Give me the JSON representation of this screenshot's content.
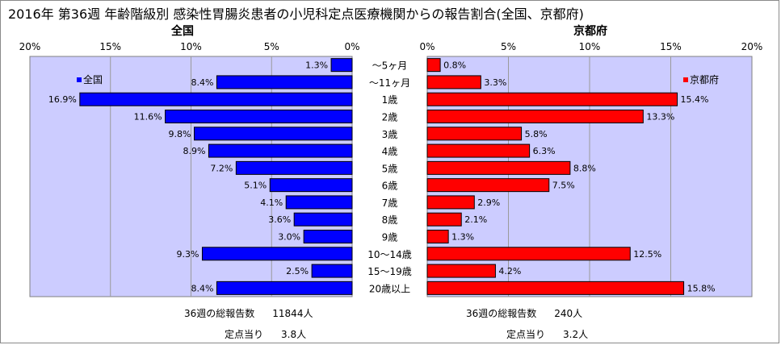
{
  "title": "2016年 第36週 年齢階級別 感染性胃腸炎患者の小児科定点医療機関からの報告割合(全国、京都府)",
  "chart_data": {
    "type": "bar",
    "orientation": "horizontal",
    "categories": [
      "～5ヶ月",
      "～11ヶ月",
      "1歳",
      "2歳",
      "3歳",
      "4歳",
      "5歳",
      "6歳",
      "7歳",
      "8歳",
      "9歳",
      "10～14歳",
      "15～19歳",
      "20歳以上"
    ],
    "series": [
      {
        "name": "全国",
        "color": "#0000ff",
        "values": [
          1.3,
          8.4,
          16.9,
          11.6,
          9.8,
          8.9,
          7.2,
          5.1,
          4.1,
          3.6,
          3.0,
          9.3,
          2.5,
          8.4
        ],
        "labels": [
          "1.3%",
          "8.4%",
          "16.9%",
          "11.6%",
          "9.8%",
          "8.9%",
          "7.2%",
          "5.1%",
          "4.1%",
          "3.6%",
          "3.0%",
          "9.3%",
          "2.5%",
          "8.4%"
        ]
      },
      {
        "name": "京都府",
        "color": "#ff0000",
        "values": [
          0.8,
          3.3,
          15.4,
          13.3,
          5.8,
          6.3,
          8.8,
          7.5,
          2.9,
          2.1,
          1.3,
          12.5,
          4.2,
          15.8
        ],
        "labels": [
          "0.8%",
          "3.3%",
          "15.4%",
          "13.3%",
          "5.8%",
          "6.3%",
          "8.8%",
          "7.5%",
          "2.9%",
          "2.1%",
          "1.3%",
          "12.5%",
          "4.2%",
          "15.8%"
        ]
      }
    ],
    "xlim": [
      0,
      20
    ],
    "ticks": [
      "0%",
      "5%",
      "10%",
      "15%",
      "20%"
    ],
    "panel_titles": [
      "全国",
      "京都府"
    ],
    "legend_placement": [
      "top-left",
      "top-right"
    ],
    "grid": true
  },
  "summary": {
    "national_total_label": "36週の総報告数",
    "national_total_value": "11844人",
    "national_per_label": "定点当り",
    "national_per_value": "3.8人",
    "kyoto_total_label": "36週の総報告数",
    "kyoto_total_value": "240人",
    "kyoto_per_label": "定点当り",
    "kyoto_per_value": "3.2人"
  },
  "colors": {
    "plot_bg": "#ccccff",
    "national_bar": "#0000ff",
    "kyoto_bar": "#ff0000"
  }
}
